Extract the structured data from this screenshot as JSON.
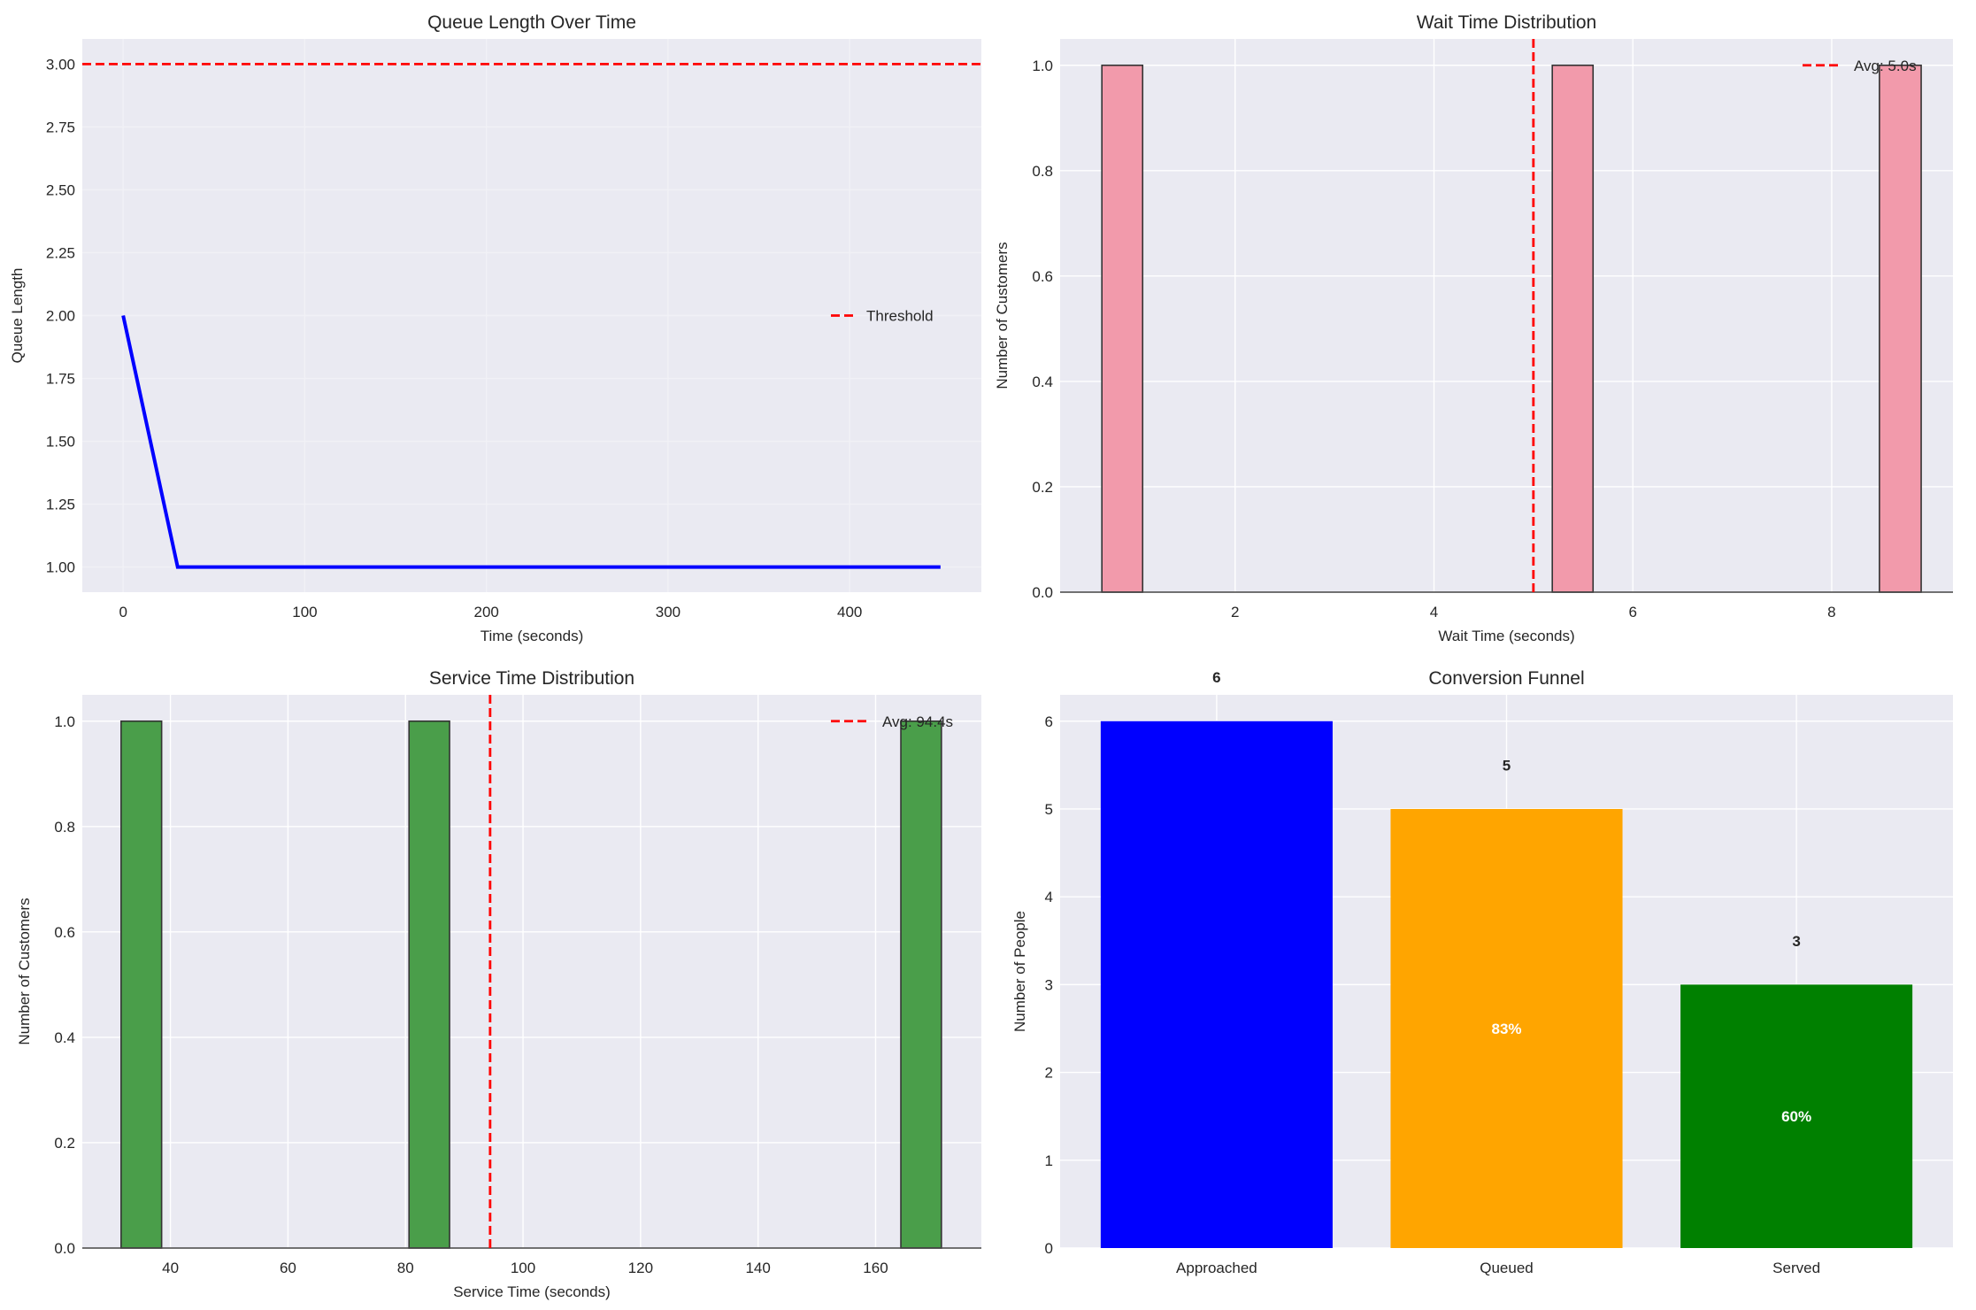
{
  "chart_data": [
    {
      "type": "line",
      "title": "Queue Length Over Time",
      "xlabel": "Time (seconds)",
      "ylabel": "Queue Length",
      "xlim": [
        -22.5,
        472.5
      ],
      "ylim": [
        0.9,
        3.1
      ],
      "xticks": [
        0,
        100,
        200,
        300,
        400
      ],
      "xtick_labels": [
        "0",
        "100",
        "200",
        "300",
        "400"
      ],
      "yticks": [
        1.0,
        1.25,
        1.5,
        1.75,
        2.0,
        2.25,
        2.5,
        2.75,
        3.0
      ],
      "ytick_labels": [
        "1.00",
        "1.25",
        "1.50",
        "1.75",
        "2.00",
        "2.25",
        "2.50",
        "2.75",
        "3.00"
      ],
      "grid": "faint",
      "series": [
        {
          "name": "Queue Length",
          "x": [
            0,
            30,
            60,
            90,
            120,
            150,
            180,
            210,
            240,
            270,
            300,
            330,
            360,
            390,
            420,
            450
          ],
          "y": [
            2,
            1,
            1,
            1,
            1,
            1,
            1,
            1,
            1,
            1,
            1,
            1,
            1,
            1,
            1,
            1
          ],
          "color": "#0000ff"
        }
      ],
      "hlines": [
        {
          "y": 3.0,
          "label": "Threshold",
          "color": "#ff0000",
          "style": "dashed"
        }
      ],
      "legend": "center-right"
    },
    {
      "type": "bar",
      "subtype": "histogram",
      "title": "Wait Time Distribution",
      "xlabel": "Wait Time (seconds)",
      "ylabel": "Number of Customers",
      "xlim": [
        0.24,
        9.22
      ],
      "ylim": [
        0,
        1.05
      ],
      "xticks": [
        2,
        4,
        6,
        8
      ],
      "xtick_labels": [
        "2",
        "4",
        "6",
        "8"
      ],
      "yticks": [
        0,
        0.2,
        0.4,
        0.6,
        0.8,
        1.0
      ],
      "ytick_labels": [
        "0.0",
        "0.2",
        "0.4",
        "0.6",
        "0.8",
        "1.0"
      ],
      "grid": true,
      "bins": [
        {
          "x0": 0.66,
          "x1": 1.07,
          "count": 1
        },
        {
          "x0": 5.19,
          "x1": 5.6,
          "count": 1
        },
        {
          "x0": 8.48,
          "x1": 8.9,
          "count": 1
        }
      ],
      "bar_color": "#f29aab",
      "vlines": [
        {
          "x": 5.0,
          "label": "Avg: 5.0s",
          "color": "#ff0000",
          "style": "dashed"
        }
      ],
      "legend": "top-right"
    },
    {
      "type": "bar",
      "subtype": "histogram",
      "title": "Service Time Distribution",
      "xlabel": "Service Time (seconds)",
      "ylabel": "Number of Customers",
      "xlim": [
        25,
        178
      ],
      "ylim": [
        0,
        1.05
      ],
      "xticks": [
        40,
        60,
        80,
        100,
        120,
        140,
        160
      ],
      "xtick_labels": [
        "40",
        "60",
        "80",
        "100",
        "120",
        "140",
        "160"
      ],
      "yticks": [
        0,
        0.2,
        0.4,
        0.6,
        0.8,
        1.0
      ],
      "ytick_labels": [
        "0.0",
        "0.2",
        "0.4",
        "0.6",
        "0.8",
        "1.0"
      ],
      "grid": true,
      "bins": [
        {
          "x0": 31.6,
          "x1": 38.5,
          "count": 1
        },
        {
          "x0": 80.6,
          "x1": 87.5,
          "count": 1
        },
        {
          "x0": 164.3,
          "x1": 171.2,
          "count": 1
        }
      ],
      "bar_color": "#4a9e4a",
      "vlines": [
        {
          "x": 94.4,
          "label": "Avg: 94.4s",
          "color": "#ff0000",
          "style": "dashed"
        }
      ],
      "legend": "top-right"
    },
    {
      "type": "bar",
      "title": "Conversion Funnel",
      "xlabel": "",
      "ylabel": "Number of People",
      "categories": [
        "Approached",
        "Queued",
        "Served"
      ],
      "values": [
        6,
        5,
        3
      ],
      "value_labels": [
        "6",
        "5",
        "3"
      ],
      "percent_labels": [
        null,
        "83%",
        "60%"
      ],
      "colors": [
        "#0000ff",
        "#ffa500",
        "#008000"
      ],
      "xlim": [
        -0.54,
        2.54
      ],
      "ylim": [
        0,
        6.3
      ],
      "yticks": [
        0,
        1,
        2,
        3,
        4,
        5,
        6
      ],
      "ytick_labels": [
        "0",
        "1",
        "2",
        "3",
        "4",
        "5",
        "6"
      ],
      "grid": true
    }
  ]
}
